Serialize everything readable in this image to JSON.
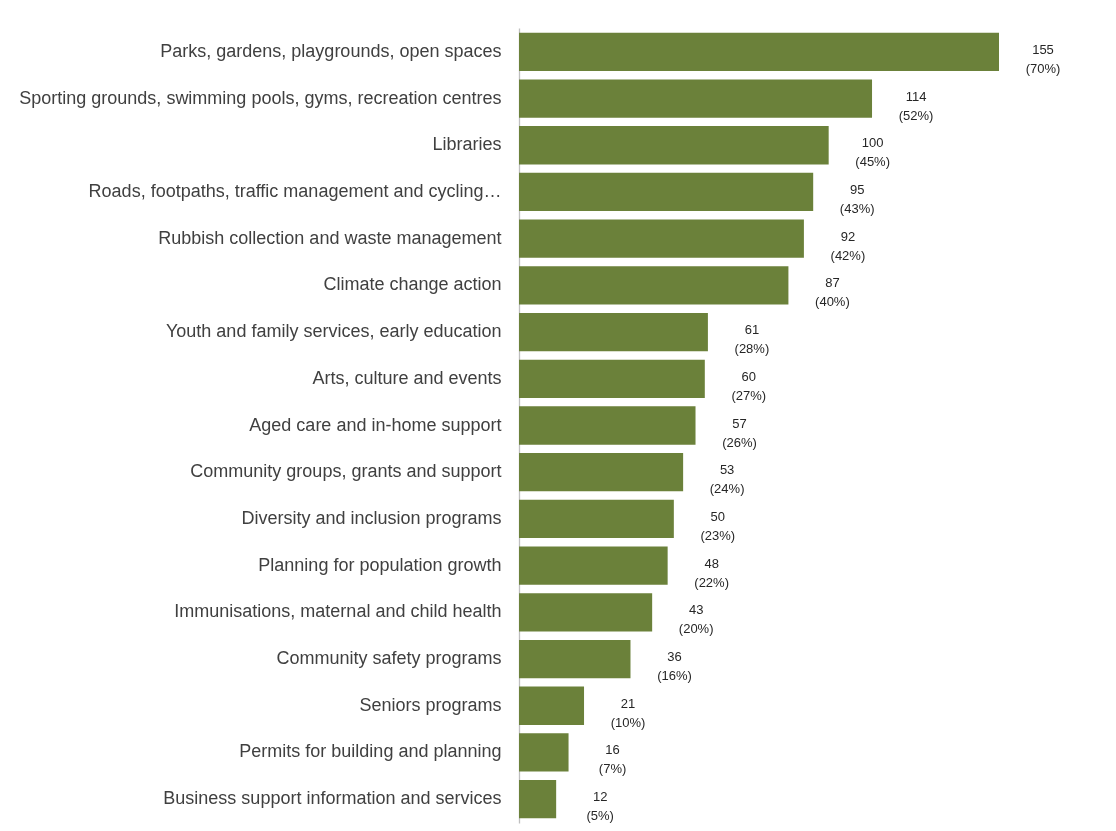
{
  "chart_data": {
    "type": "bar",
    "orientation": "horizontal",
    "color": "#6b813a",
    "categories": [
      "Parks, gardens, playgrounds, open spaces",
      "Sporting grounds, swimming pools, gyms, recreation centres",
      "Libraries",
      "Roads, footpaths, traffic management and cycling…",
      "Rubbish collection and waste management",
      "Climate change action",
      "Youth and family services, early education",
      "Arts, culture and events",
      "Aged care and in-home support",
      "Community groups, grants and support",
      "Diversity and inclusion programs",
      "Planning for population growth",
      "Immunisations, maternal and child health",
      "Community safety programs",
      "Seniors programs",
      "Permits for building and planning",
      "Business support information and services"
    ],
    "values": [
      155,
      114,
      100,
      95,
      92,
      87,
      61,
      60,
      57,
      53,
      50,
      48,
      43,
      36,
      21,
      16,
      12
    ],
    "value_labels": [
      "155\n(70%)",
      "114\n(52%)",
      "100\n(45%)",
      "95\n(43%)",
      "92\n(42%)",
      "87\n(40%)",
      "61\n(28%)",
      "60\n(27%)",
      "57\n(26%)",
      "53\n(24%)",
      "50\n(23%)",
      "48\n(22%)",
      "43\n(20%)",
      "36\n(16%)",
      "21\n(10%)",
      "16\n(7%)",
      "12\n(5%)"
    ],
    "grid": false
  }
}
